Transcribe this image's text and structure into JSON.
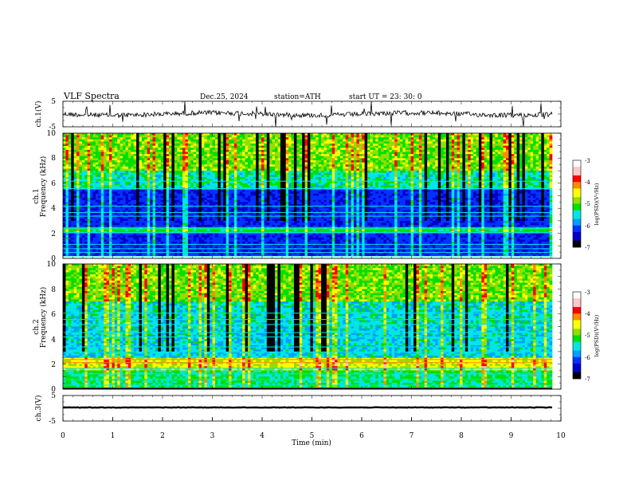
{
  "header": {
    "title": "VLF  Spectra",
    "date": "Dec.25, 2024",
    "station": "station=ATH",
    "start": "start  UT  =    23: 30: 0"
  },
  "chart_data": [
    {
      "type": "line",
      "panel": "ch1-waveform",
      "ylabel": "ch.1(V)",
      "ylim": [
        -5,
        5
      ],
      "yticks": [
        "5",
        "-5"
      ],
      "xlim": [
        0,
        10
      ]
    },
    {
      "type": "heatmap",
      "panel": "ch1-spectrogram",
      "ylabel_top": "ch.1",
      "ylabel": "Frequency  (kHz)",
      "ylim": [
        0,
        10
      ],
      "yticks": [
        "0",
        "2",
        "4",
        "6",
        "8",
        "10"
      ],
      "xlim": [
        0,
        10
      ],
      "colorbar": {
        "label": "log(PSD)(V²/Hz)",
        "range": [
          -7,
          -3
        ],
        "ticks": [
          "-3",
          "-4",
          "-5",
          "-6",
          "-7"
        ]
      }
    },
    {
      "type": "heatmap",
      "panel": "ch2-spectrogram",
      "ylabel_top": "ch.2",
      "ylabel": "Frequency  (kHz)",
      "ylim": [
        0,
        10
      ],
      "yticks": [
        "0",
        "2",
        "4",
        "6",
        "8",
        "10"
      ],
      "xlim": [
        0,
        10
      ],
      "colorbar": {
        "label": "log(PSD)(V²/Hz)",
        "range": [
          -7,
          -3
        ],
        "ticks": [
          "-3",
          "-4",
          "-5",
          "-6",
          "-7"
        ]
      }
    },
    {
      "type": "line",
      "panel": "ch3-waveform",
      "ylabel": "ch.3(V)",
      "ylim": [
        -5,
        5
      ],
      "yticks": [
        "5",
        "-5"
      ],
      "xlabel": "Time  (min)",
      "xlim": [
        0,
        10
      ],
      "xticks": [
        "0",
        "1",
        "2",
        "3",
        "4",
        "5",
        "6",
        "7",
        "8",
        "9",
        "10"
      ],
      "data_end_min": 9.85
    }
  ],
  "colors": {
    "colormap": [
      "#000000",
      "#0000c8",
      "#0033ff",
      "#00a0ff",
      "#00e6e6",
      "#00e000",
      "#90e000",
      "#ffff00",
      "#ff8c00",
      "#ff0000",
      "#ffc8c8",
      "#ffffff"
    ]
  }
}
